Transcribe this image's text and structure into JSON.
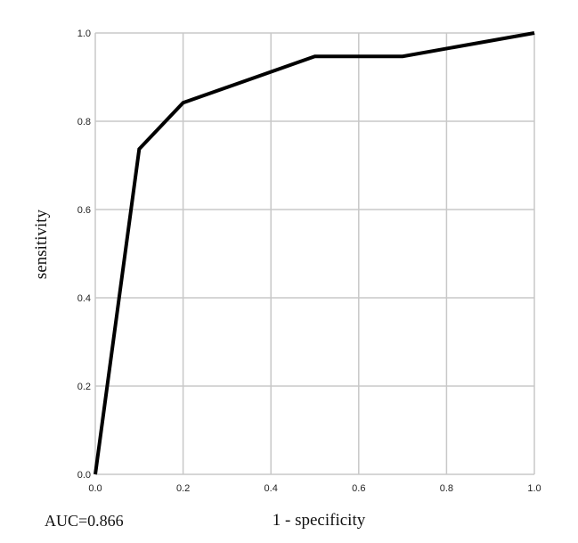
{
  "chart_data": {
    "type": "line",
    "title": "",
    "xlabel": "1 - specificity",
    "ylabel": "sensitivity",
    "xlim": [
      0,
      1
    ],
    "ylim": [
      0,
      1
    ],
    "grid": true,
    "xticks": [
      "0.0",
      "0.2",
      "0.4",
      "0.6",
      "0.8",
      "1.0"
    ],
    "yticks": [
      "0.0",
      "0.2",
      "0.4",
      "0.6",
      "0.8",
      "1.0"
    ],
    "series": [
      {
        "x": [
          0.0,
          0.1,
          0.2,
          0.5,
          0.7,
          1.0
        ],
        "y": [
          0.0,
          0.737,
          0.842,
          0.947,
          0.947,
          1.0
        ]
      }
    ],
    "annotations": [
      "AUC=0.866"
    ]
  }
}
